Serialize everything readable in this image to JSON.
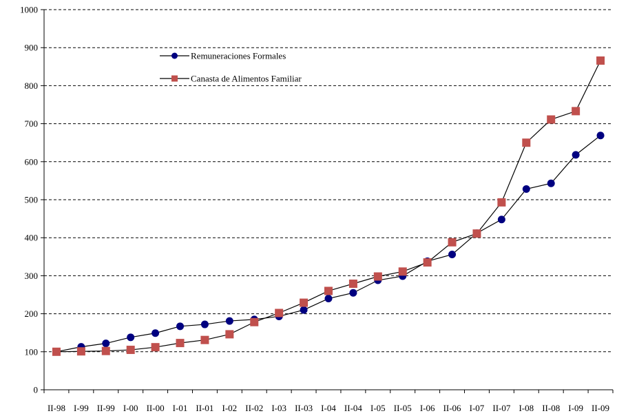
{
  "chart_data": {
    "type": "line",
    "categories": [
      "II-98",
      "I-99",
      "II-99",
      "I-00",
      "II-00",
      "I-01",
      "II-01",
      "I-02",
      "II-02",
      "I-03",
      "II-03",
      "I-04",
      "II-04",
      "I-05",
      "II-05",
      "I-06",
      "II-06",
      "I-07",
      "II-07",
      "I-08",
      "II-08",
      "I-09",
      "II-09"
    ],
    "series": [
      {
        "name": "Remuneraciones Formales",
        "color": "#000080",
        "marker": "circle",
        "values": [
          100,
          113,
          122,
          138,
          149,
          167,
          172,
          181,
          185,
          193,
          210,
          240,
          255,
          288,
          299,
          338,
          356,
          412,
          448,
          528,
          543,
          618,
          669
        ]
      },
      {
        "name": "Canasta de Alimentos Familiar",
        "color": "#c0504d",
        "marker": "square",
        "values": [
          100,
          101,
          102,
          105,
          112,
          123,
          131,
          146,
          178,
          202,
          229,
          260,
          279,
          298,
          311,
          335,
          388,
          411,
          493,
          650,
          711,
          733,
          866
        ]
      }
    ],
    "ylim": [
      0,
      1000
    ],
    "yticks": [
      0,
      100,
      200,
      300,
      400,
      500,
      600,
      700,
      800,
      900,
      1000
    ],
    "grid": "horizontal dashed",
    "legend": "top-center"
  }
}
